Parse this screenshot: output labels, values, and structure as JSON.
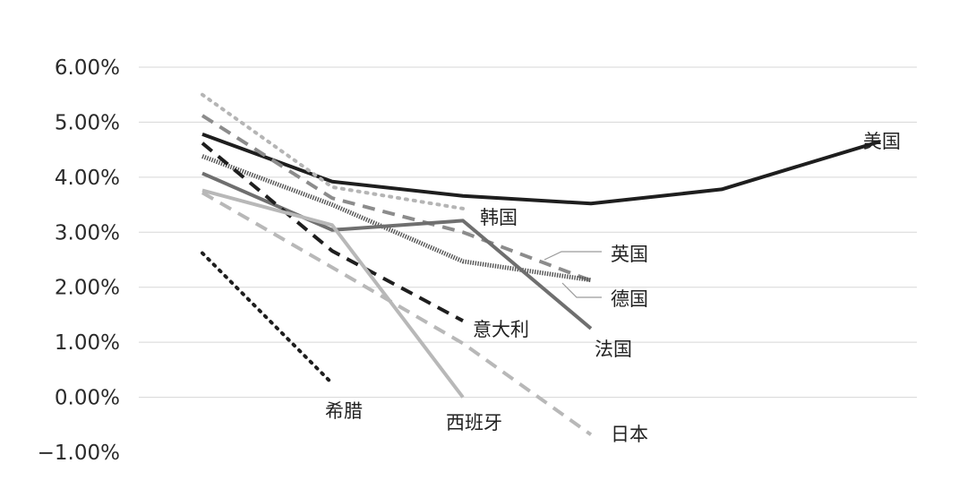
{
  "chart_data": {
    "type": "line",
    "title": "",
    "xlabel": "",
    "ylabel": "",
    "ylim": [
      -1.0,
      6.0
    ],
    "y_ticks": [
      -1.0,
      0.0,
      1.0,
      2.0,
      3.0,
      4.0,
      5.0,
      6.0
    ],
    "y_tick_labels": [
      "−1.00%",
      "0.00%",
      "1.00%",
      "2.00%",
      "3.00%",
      "4.00%",
      "5.00%",
      "6.00%"
    ],
    "x": [
      1,
      2,
      3,
      4,
      5,
      6
    ],
    "grid": true,
    "series": [
      {
        "name": "美国",
        "values": [
          4.78,
          3.92,
          3.66,
          3.52,
          3.78,
          4.65
        ],
        "color": "#1e1e1e",
        "dash": "solid"
      },
      {
        "name": "韩国",
        "values": [
          5.5,
          3.82,
          3.43,
          null,
          null,
          null
        ],
        "color": "#b5b5b5",
        "dash": "dotted"
      },
      {
        "name": "英国",
        "values": [
          5.12,
          3.62,
          3.0,
          2.12,
          null,
          null
        ],
        "color": "#8c8c8c",
        "dash": "dashed"
      },
      {
        "name": "德国",
        "values": [
          4.38,
          3.5,
          2.47,
          2.13,
          null,
          null
        ],
        "color": "#555555",
        "dash": "hatched"
      },
      {
        "name": "法国",
        "values": [
          4.07,
          3.04,
          3.21,
          1.25,
          null,
          null
        ],
        "color": "#6f6f6f",
        "dash": "solid"
      },
      {
        "name": "意大利",
        "values": [
          4.62,
          2.66,
          1.39,
          null,
          null,
          null
        ],
        "color": "#1e1e1e",
        "dash": "dashed"
      },
      {
        "name": "西班牙",
        "values": [
          3.76,
          3.13,
          0.0,
          null,
          null,
          null
        ],
        "color": "#b8b8b8",
        "dash": "solid"
      },
      {
        "name": "日本",
        "values": [
          3.72,
          2.36,
          0.98,
          -0.68,
          null,
          null
        ],
        "color": "#b8b8b8",
        "dash": "dashed"
      },
      {
        "name": "希腊",
        "values": [
          2.62,
          0.25,
          null,
          null,
          null,
          null
        ],
        "color": "#1e1e1e",
        "dash": "dotted"
      }
    ]
  }
}
